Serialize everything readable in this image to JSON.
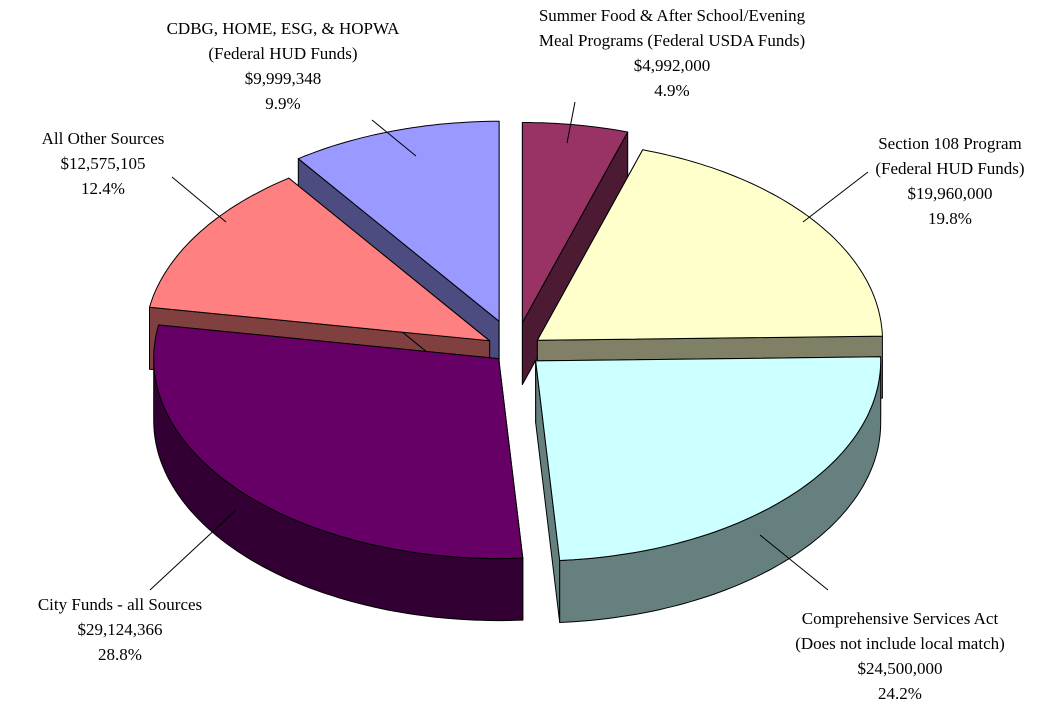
{
  "chart_data": {
    "type": "pie3d",
    "categories": [
      [
        "Summer Food & After School/Evening",
        "Meal Programs (Federal USDA Funds)"
      ],
      [
        "Section 108 Program",
        "(Federal HUD Funds)"
      ],
      [
        "Comprehensive Services Act",
        "(Does not include local match)"
      ],
      [
        "City Funds - all Sources"
      ],
      [
        "All Other Sources"
      ],
      [
        "CDBG, HOME, ESG, & HOPWA",
        "(Federal HUD Funds)"
      ]
    ],
    "values": [
      4992000,
      19960000,
      24500000,
      29124366,
      12575105,
      9999348
    ],
    "value_labels": [
      "$4,992,000",
      "$19,960,000",
      "$24,500,000",
      "$29,124,366",
      "$12,575,105",
      "$9,999,348"
    ],
    "percents": [
      4.9,
      19.8,
      24.2,
      28.8,
      12.4,
      9.9
    ],
    "percent_labels": [
      "4.9%",
      "19.8%",
      "24.2%",
      "28.8%",
      "12.4%",
      "9.9%"
    ],
    "colors": [
      "#993366",
      "#FFFFCC",
      "#CCFFFF",
      "#660066",
      "#FF8080",
      "#9999FF"
    ],
    "side_colors": [
      "#4C1A33",
      "#808066",
      "#668080",
      "#330033",
      "#804040",
      "#4C4C80"
    ]
  }
}
